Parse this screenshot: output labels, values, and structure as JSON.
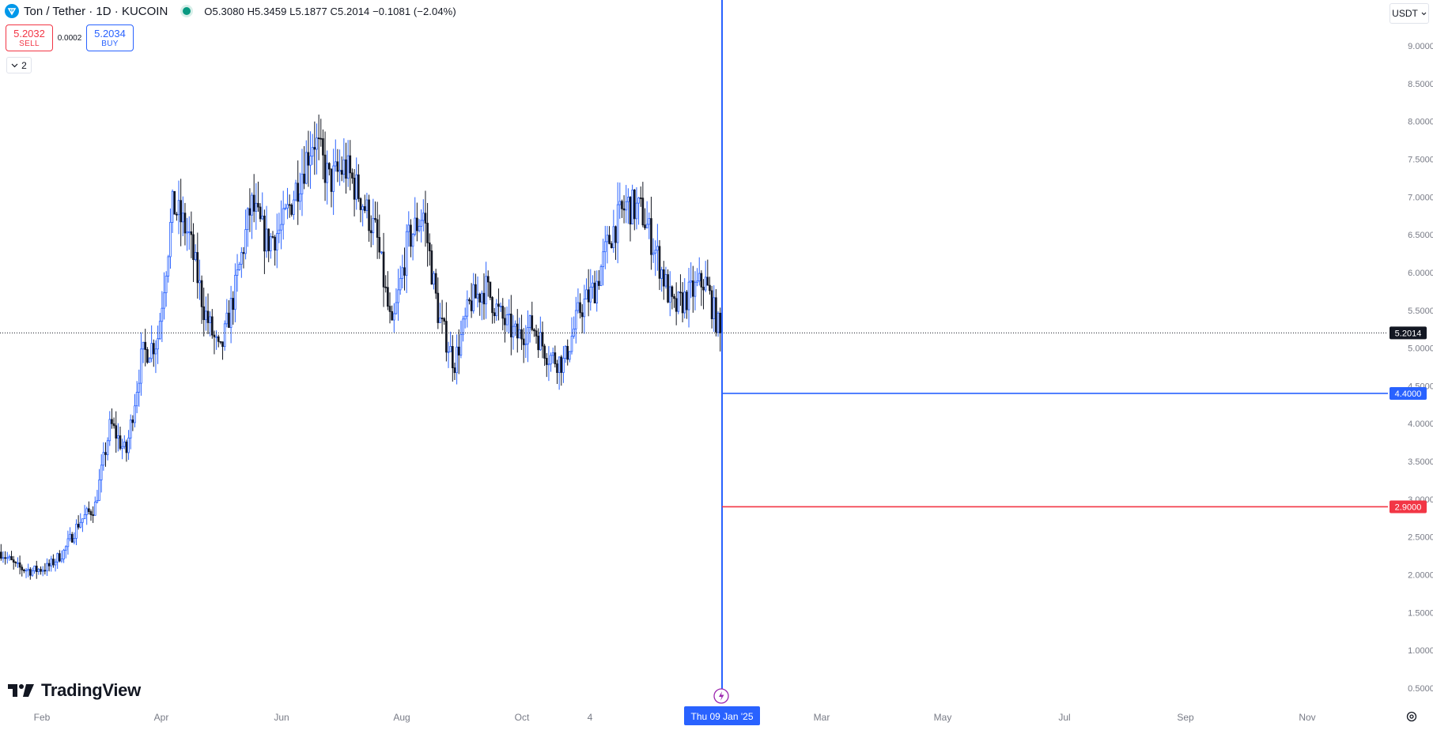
{
  "header": {
    "symbol_title": "Ton / Tether · 1D · KUCOIN",
    "ohlc": "O5.3080 H5.3459 L5.1877 C5.2014 −0.1081 (−2.04%)"
  },
  "trade": {
    "sell_price": "5.2032",
    "sell_label": "SELL",
    "spread": "0.0002",
    "buy_price": "5.2034",
    "buy_label": "BUY"
  },
  "indicators_toggle": {
    "count": "2"
  },
  "currency": {
    "label": "USDT"
  },
  "logo": {
    "text": "TradingView"
  },
  "colors": {
    "up": "#2962ff",
    "down": "#131722",
    "buy_line": "#2962ff",
    "sell_line": "#f23645",
    "price_badge": "#131722"
  },
  "chart_data": {
    "type": "candlestick",
    "y_axis_ticks": [
      "0.5000",
      "1.0000",
      "1.5000",
      "2.0000",
      "2.5000",
      "3.0000",
      "3.5000",
      "4.0000",
      "4.5000",
      "5.0000",
      "5.5000",
      "6.0000",
      "6.5000",
      "7.0000",
      "7.5000",
      "8.0000",
      "8.5000",
      "9.0000"
    ],
    "x_axis_ticks": [
      "Feb",
      "Apr",
      "Jun",
      "Aug",
      "Oct",
      "4",
      "Mar",
      "May",
      "Jul",
      "Sep",
      "Nov"
    ],
    "ylim": [
      0.2,
      9.7
    ],
    "last_price": "5.2014",
    "price_lines": [
      {
        "value": 4.4,
        "label": "4.4000",
        "color": "#2962ff"
      },
      {
        "value": 2.9,
        "label": "2.9000",
        "color": "#f23645"
      }
    ],
    "cursor_date_label": "Thu 09 Jan '25",
    "close_path": [
      2.3,
      2.1,
      2.05,
      2.1,
      2.3,
      2.7,
      2.9,
      4.0,
      3.6,
      4.9,
      5.1,
      6.9,
      6.5,
      5.5,
      4.9,
      5.8,
      6.9,
      6.4,
      6.6,
      7.2,
      7.8,
      7.2,
      7.4,
      7.0,
      6.5,
      5.2,
      6.4,
      6.8,
      5.4,
      4.8,
      5.6,
      5.8,
      5.4,
      5.15,
      5.3,
      4.9,
      4.8,
      5.5,
      5.8,
      6.5,
      6.9,
      6.8,
      6.2,
      5.5,
      5.7,
      5.9,
      5.2
    ]
  }
}
